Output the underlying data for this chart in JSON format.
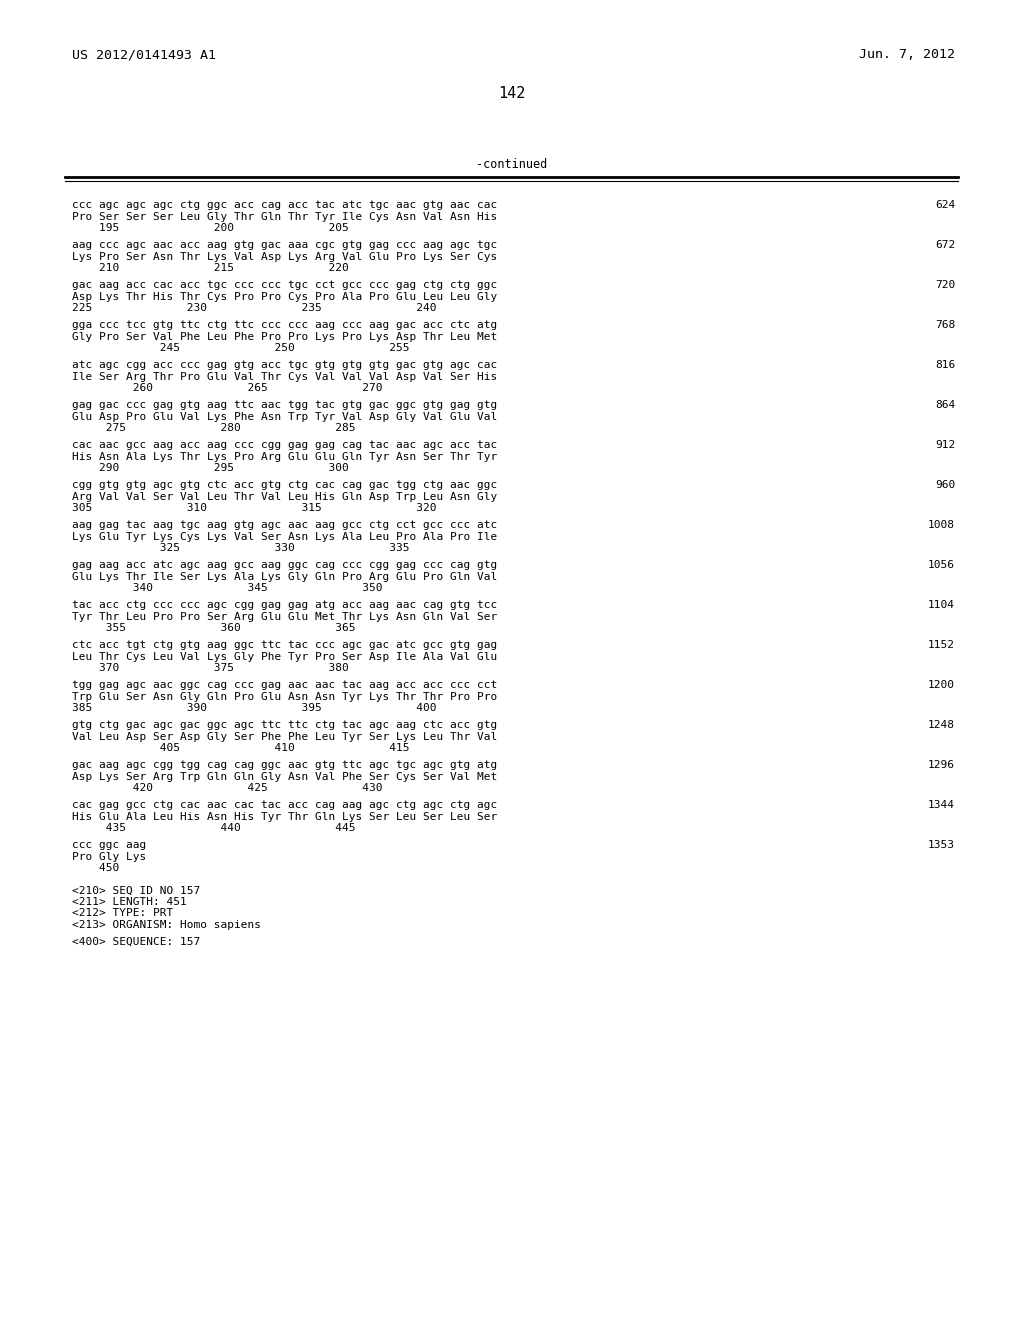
{
  "header_left": "US 2012/0141493 A1",
  "header_right": "Jun. 7, 2012",
  "page_number": "142",
  "continued_label": "-continued",
  "bg_color": "#ffffff",
  "text_color": "#000000",
  "font_size": 8.0,
  "header_font_size": 9.5,
  "page_num_font_size": 11,
  "content_lines": [
    [
      "ccc agc agc agc ctg ggc acc cag acc tac atc tgc aac gtg aac cac",
      "624"
    ],
    [
      "Pro Ser Ser Ser Leu Gly Thr Gln Thr Tyr Ile Cys Asn Val Asn His",
      ""
    ],
    [
      "    195              200              205",
      ""
    ],
    [
      "",
      ""
    ],
    [
      "aag ccc agc aac acc aag gtg gac aaa cgc gtg gag ccc aag agc tgc",
      "672"
    ],
    [
      "Lys Pro Ser Asn Thr Lys Val Asp Lys Arg Val Glu Pro Lys Ser Cys",
      ""
    ],
    [
      "    210              215              220",
      ""
    ],
    [
      "",
      ""
    ],
    [
      "gac aag acc cac acc tgc ccc ccc tgc cct gcc ccc gag ctg ctg ggc",
      "720"
    ],
    [
      "Asp Lys Thr His Thr Cys Pro Pro Cys Pro Ala Pro Glu Leu Leu Gly",
      ""
    ],
    [
      "225              230              235              240",
      ""
    ],
    [
      "",
      ""
    ],
    [
      "gga ccc tcc gtg ttc ctg ttc ccc ccc aag ccc aag gac acc ctc atg",
      "768"
    ],
    [
      "Gly Pro Ser Val Phe Leu Phe Pro Pro Lys Pro Lys Asp Thr Leu Met",
      ""
    ],
    [
      "             245              250              255",
      ""
    ],
    [
      "",
      ""
    ],
    [
      "atc agc cgg acc ccc gag gtg acc tgc gtg gtg gtg gac gtg agc cac",
      "816"
    ],
    [
      "Ile Ser Arg Thr Pro Glu Val Thr Cys Val Val Val Asp Val Ser His",
      ""
    ],
    [
      "         260              265              270",
      ""
    ],
    [
      "",
      ""
    ],
    [
      "gag gac ccc gag gtg aag ttc aac tgg tac gtg gac ggc gtg gag gtg",
      "864"
    ],
    [
      "Glu Asp Pro Glu Val Lys Phe Asn Trp Tyr Val Asp Gly Val Glu Val",
      ""
    ],
    [
      "     275              280              285",
      ""
    ],
    [
      "",
      ""
    ],
    [
      "cac aac gcc aag acc aag ccc cgg gag gag cag tac aac agc acc tac",
      "912"
    ],
    [
      "His Asn Ala Lys Thr Lys Pro Arg Glu Glu Gln Tyr Asn Ser Thr Tyr",
      ""
    ],
    [
      "    290              295              300",
      ""
    ],
    [
      "",
      ""
    ],
    [
      "cgg gtg gtg agc gtg ctc acc gtg ctg cac cag gac tgg ctg aac ggc",
      "960"
    ],
    [
      "Arg Val Val Ser Val Leu Thr Val Leu His Gln Asp Trp Leu Asn Gly",
      ""
    ],
    [
      "305              310              315              320",
      ""
    ],
    [
      "",
      ""
    ],
    [
      "aag gag tac aag tgc aag gtg agc aac aag gcc ctg cct gcc ccc atc",
      "1008"
    ],
    [
      "Lys Glu Tyr Lys Cys Lys Val Ser Asn Lys Ala Leu Pro Ala Pro Ile",
      ""
    ],
    [
      "             325              330              335",
      ""
    ],
    [
      "",
      ""
    ],
    [
      "gag aag acc atc agc aag gcc aag ggc cag ccc cgg gag ccc cag gtg",
      "1056"
    ],
    [
      "Glu Lys Thr Ile Ser Lys Ala Lys Gly Gln Pro Arg Glu Pro Gln Val",
      ""
    ],
    [
      "         340              345              350",
      ""
    ],
    [
      "",
      ""
    ],
    [
      "tac acc ctg ccc ccc agc cgg gag gag atg acc aag aac cag gtg tcc",
      "1104"
    ],
    [
      "Tyr Thr Leu Pro Pro Ser Arg Glu Glu Met Thr Lys Asn Gln Val Ser",
      ""
    ],
    [
      "     355              360              365",
      ""
    ],
    [
      "",
      ""
    ],
    [
      "ctc acc tgt ctg gtg aag ggc ttc tac ccc agc gac atc gcc gtg gag",
      "1152"
    ],
    [
      "Leu Thr Cys Leu Val Lys Gly Phe Tyr Pro Ser Asp Ile Ala Val Glu",
      ""
    ],
    [
      "    370              375              380",
      ""
    ],
    [
      "",
      ""
    ],
    [
      "tgg gag agc aac ggc cag ccc gag aac aac tac aag acc acc ccc cct",
      "1200"
    ],
    [
      "Trp Glu Ser Asn Gly Gln Pro Glu Asn Asn Tyr Lys Thr Thr Pro Pro",
      ""
    ],
    [
      "385              390              395              400",
      ""
    ],
    [
      "",
      ""
    ],
    [
      "gtg ctg gac agc gac ggc agc ttc ttc ctg tac agc aag ctc acc gtg",
      "1248"
    ],
    [
      "Val Leu Asp Ser Asp Gly Ser Phe Phe Leu Tyr Ser Lys Leu Thr Val",
      ""
    ],
    [
      "             405              410              415",
      ""
    ],
    [
      "",
      ""
    ],
    [
      "gac aag agc cgg tgg cag cag ggc aac gtg ttc agc tgc agc gtg atg",
      "1296"
    ],
    [
      "Asp Lys Ser Arg Trp Gln Gln Gly Asn Val Phe Ser Cys Ser Val Met",
      ""
    ],
    [
      "         420              425              430",
      ""
    ],
    [
      "",
      ""
    ],
    [
      "cac gag gcc ctg cac aac cac tac acc cag aag agc ctg agc ctg agc",
      "1344"
    ],
    [
      "His Glu Ala Leu His Asn His Tyr Thr Gln Lys Ser Leu Ser Leu Ser",
      ""
    ],
    [
      "     435              440              445",
      ""
    ],
    [
      "",
      ""
    ],
    [
      "ccc ggc aag",
      "1353"
    ],
    [
      "Pro Gly Lys",
      ""
    ],
    [
      "    450",
      ""
    ],
    [
      "",
      ""
    ],
    [
      "",
      ""
    ],
    [
      "<210> SEQ ID NO 157",
      ""
    ],
    [
      "<211> LENGTH: 451",
      ""
    ],
    [
      "<212> TYPE: PRT",
      ""
    ],
    [
      "<213> ORGANISM: Homo sapiens",
      ""
    ],
    [
      "",
      ""
    ],
    [
      "<400> SEQUENCE: 157",
      ""
    ]
  ]
}
